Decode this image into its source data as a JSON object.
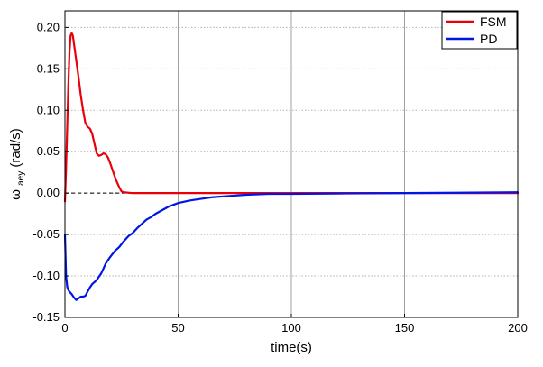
{
  "chart_data": {
    "type": "line",
    "xlabel": "time(s)",
    "ylabel_main": "ω",
    "ylabel_sub": "aey",
    "ylabel_unit": "(rad/s)",
    "xlim": [
      0,
      200
    ],
    "ylim": [
      -0.15,
      0.22
    ],
    "x_ticks": [
      0,
      50,
      100,
      150,
      200
    ],
    "y_ticks": [
      -0.15,
      -0.1,
      -0.05,
      0.0,
      0.05,
      0.1,
      0.15,
      0.2
    ],
    "x_tick_labels": [
      "0",
      "50",
      "100",
      "150",
      "200"
    ],
    "y_tick_labels": [
      "-0.15",
      "-0.10",
      "-0.05",
      "0.00",
      "0.05",
      "0.10",
      "0.15",
      "0.20"
    ],
    "grid": true,
    "reference_line": {
      "y": 0,
      "style": "dashed",
      "color": "#000000"
    },
    "legend": {
      "position": "top-right",
      "entries": [
        "FSM",
        "PD"
      ]
    },
    "series": [
      {
        "name": "FSM",
        "color": "#e8000b",
        "x": [
          0,
          0.5,
          1,
          1.5,
          2,
          2.5,
          3,
          3.5,
          4,
          5,
          6,
          7,
          8,
          9,
          10,
          11,
          12,
          13,
          14,
          15,
          16,
          17,
          18,
          19,
          20,
          21,
          22,
          23,
          24,
          25,
          26,
          30,
          40,
          60,
          80,
          100,
          150,
          200
        ],
        "y": [
          -0.01,
          0.03,
          0.08,
          0.13,
          0.17,
          0.19,
          0.193,
          0.19,
          0.18,
          0.16,
          0.14,
          0.118,
          0.1,
          0.085,
          0.08,
          0.078,
          0.072,
          0.06,
          0.048,
          0.045,
          0.046,
          0.048,
          0.047,
          0.043,
          0.036,
          0.028,
          0.02,
          0.013,
          0.007,
          0.002,
          0.001,
          0.0,
          0.0,
          0.0,
          0.0,
          0.0,
          0.0,
          0.0
        ]
      },
      {
        "name": "PD",
        "color": "#0016e6",
        "x": [
          0,
          0.5,
          1,
          1.5,
          2,
          3,
          4,
          5,
          6,
          7,
          8,
          9,
          10,
          11,
          12,
          14,
          16,
          18,
          20,
          22,
          24,
          26,
          28,
          30,
          32,
          34,
          36,
          38,
          40,
          42,
          44,
          46,
          48,
          50,
          55,
          60,
          65,
          70,
          75,
          80,
          90,
          100,
          120,
          150,
          200
        ],
        "y": [
          -0.05,
          -0.1,
          -0.113,
          -0.117,
          -0.119,
          -0.122,
          -0.126,
          -0.129,
          -0.127,
          -0.125,
          -0.125,
          -0.124,
          -0.119,
          -0.114,
          -0.11,
          -0.105,
          -0.097,
          -0.085,
          -0.077,
          -0.07,
          -0.065,
          -0.058,
          -0.052,
          -0.048,
          -0.042,
          -0.037,
          -0.032,
          -0.029,
          -0.025,
          -0.022,
          -0.019,
          -0.016,
          -0.014,
          -0.012,
          -0.009,
          -0.007,
          -0.005,
          -0.004,
          -0.003,
          -0.002,
          -0.001,
          -0.001,
          -0.0005,
          0.0,
          0.001
        ]
      }
    ]
  }
}
